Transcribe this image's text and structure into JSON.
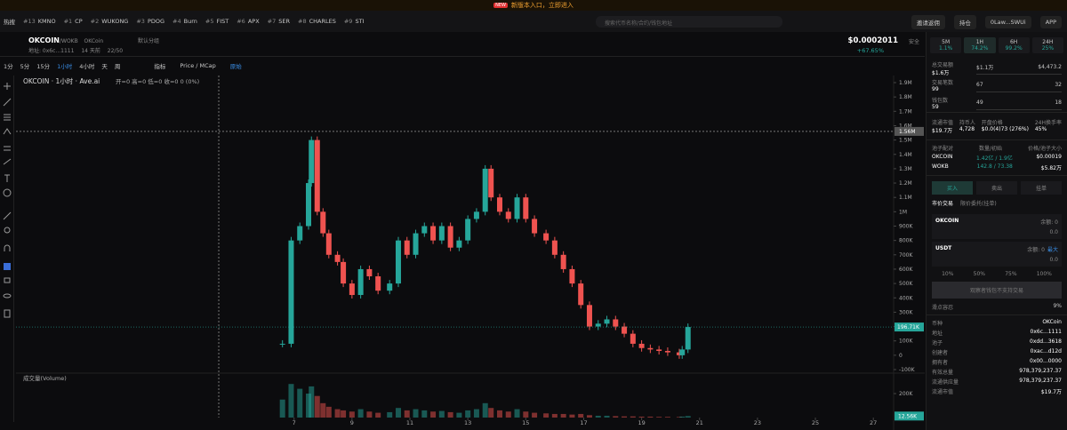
{
  "banner": {
    "badge": "NEW",
    "text": "新版本入口，立即进入"
  },
  "nav": {
    "label": "热搜",
    "tabs": [
      {
        "rank": "#13",
        "name": "KMNO"
      },
      {
        "rank": "#1",
        "name": "CP"
      },
      {
        "rank": "#2",
        "name": "WUKONG"
      },
      {
        "rank": "#3",
        "name": "PDOG"
      },
      {
        "rank": "#4",
        "name": "Burn"
      },
      {
        "rank": "#5",
        "name": "FIST"
      },
      {
        "rank": "#6",
        "name": "APX"
      },
      {
        "rank": "#7",
        "name": "SER"
      },
      {
        "rank": "#8",
        "name": "CHARLES"
      },
      {
        "rank": "#9",
        "name": "STI"
      }
    ],
    "search": "搜索代币名称/合约/钱包地址",
    "actions": [
      "邀请返佣",
      "持仓",
      "0Law...SWUi",
      "APP"
    ]
  },
  "token": {
    "name": "OKCOIN",
    "pair": "/WOKB",
    "chain": "OKCoin",
    "tag": "默认分组",
    "address": "地址: 0x6c...1111",
    "age": "14 天前",
    "holders": "22/50",
    "price": "$0.0002011",
    "change": "+67.65%",
    "safety": "安全"
  },
  "toolbar": {
    "intervals": [
      "1分",
      "5分",
      "15分",
      "1小时",
      "4小时",
      "天",
      "周"
    ],
    "items": [
      "指标",
      "Price / MCap",
      "原始"
    ]
  },
  "chart_data": {
    "type": "candlestick",
    "title": "OKCOIN · 1小时 · Ave.ai",
    "ohlc_label": "开=0 高=0 低=0 收=0 0 (0%)",
    "volume_label": "成交量(Volume)",
    "x": [
      6.6,
      6.9,
      7.2,
      7.5,
      7.6,
      7.8,
      8.0,
      8.2,
      8.5,
      8.7,
      9.0,
      9.3,
      9.6,
      9.9,
      10.3,
      10.6,
      10.9,
      11.2,
      11.5,
      11.8,
      12.1,
      12.4,
      12.7,
      13.0,
      13.3,
      13.6,
      13.8,
      14.1,
      14.4,
      14.7,
      15.0,
      15.3,
      15.7,
      16.0,
      16.3,
      16.6,
      16.9,
      17.2,
      17.5,
      17.8,
      18.1,
      18.4,
      18.7,
      19.0,
      19.3,
      19.6,
      19.9,
      20.3,
      20.4,
      20.6
    ],
    "values": [
      80000,
      800000,
      900000,
      1200000,
      1500000,
      1000000,
      850000,
      700000,
      650000,
      500000,
      420000,
      600000,
      550000,
      450000,
      500000,
      800000,
      700000,
      850000,
      900000,
      800000,
      900000,
      750000,
      800000,
      950000,
      1000000,
      1300000,
      1100000,
      1000000,
      950000,
      1100000,
      950000,
      850000,
      800000,
      700000,
      600000,
      500000,
      350000,
      200000,
      220000,
      250000,
      200000,
      150000,
      80000,
      50000,
      40000,
      30000,
      20000,
      0,
      40000,
      196710
    ],
    "volume": [
      150000,
      280000,
      240000,
      200000,
      260000,
      180000,
      120000,
      90000,
      70000,
      60000,
      50000,
      70000,
      50000,
      40000,
      45000,
      80000,
      60000,
      70000,
      60000,
      50000,
      55000,
      45000,
      40000,
      60000,
      70000,
      120000,
      80000,
      60000,
      50000,
      70000,
      50000,
      40000,
      35000,
      30000,
      30000,
      25000,
      30000,
      20000,
      15000,
      15000,
      12000,
      10000,
      10000,
      8000,
      8000,
      6000,
      6000,
      5000,
      8000,
      12560
    ],
    "up_color": "#26a69a",
    "down_color": "#ef5350",
    "xlim": [
      -2.6,
      27.7
    ],
    "xticks": [
      7,
      9,
      11,
      13,
      15,
      17,
      19,
      21,
      23,
      25,
      27
    ],
    "ylim": [
      -100000,
      1900000
    ],
    "yticks": [
      {
        "value": -100000,
        "label": "-100K"
      },
      0,
      {
        "value": 100000,
        "label": "100K"
      },
      {
        "value": 200000,
        "label": "200K"
      },
      {
        "value": 300000,
        "label": "300K"
      },
      {
        "value": 400000,
        "label": "400K"
      },
      {
        "value": 500000,
        "label": "500K"
      },
      {
        "value": 600000,
        "label": "600K"
      },
      {
        "value": 700000,
        "label": "700K"
      },
      {
        "value": 800000,
        "label": "800K"
      },
      {
        "value": 900000,
        "label": "900K"
      },
      {
        "value": 1000000,
        "label": "1M"
      },
      {
        "value": 1100000,
        "label": "1.1M"
      },
      {
        "value": 1200000,
        "label": "1.2M"
      },
      {
        "value": 1300000,
        "label": "1.3M"
      },
      {
        "value": 1400000,
        "label": "1.4M"
      },
      {
        "value": 1500000,
        "label": "1.5M"
      },
      {
        "value": 1600000,
        "label": "1.6M"
      },
      {
        "value": 1700000,
        "label": "1.7M"
      },
      {
        "value": 1800000,
        "label": "1.8M"
      },
      {
        "value": 1900000,
        "label": "1.9M"
      }
    ],
    "volume_ylim": [
      0,
      300000
    ],
    "volume_yticks": [
      {
        "value": 200000,
        "label": "200K"
      }
    ],
    "last_label": "196.71K",
    "volume_last_label": "12.56K",
    "crosshair": {
      "x": 4.4,
      "value": 1560000,
      "label": "1.56M"
    }
  },
  "stats": {
    "periods": [
      {
        "name": "5M",
        "change": "1.1%"
      },
      {
        "name": "1H",
        "change": "74.2%"
      },
      {
        "name": "6H",
        "change": "99.2%"
      },
      {
        "name": "24H",
        "change": "25%"
      }
    ],
    "rows": [
      {
        "label": "总交易额",
        "total": "$1.6万",
        "buy": "$1.1万",
        "sell": "$4,473.2"
      },
      {
        "label": "交易笔数",
        "total": "99",
        "buy": "67",
        "sell": "32"
      },
      {
        "label": "钱包数",
        "total": "59",
        "buy": "49",
        "sell": "18"
      }
    ],
    "market": [
      {
        "label": "流通市值",
        "value": "$19.7万"
      },
      {
        "label": "持币人",
        "value": "4,728"
      },
      {
        "label": "开盘价格",
        "value": "$0.0(4)73 (276%)"
      },
      {
        "label": "24H换手率",
        "value": "45%"
      }
    ]
  },
  "pool": {
    "headers": [
      "池子配对",
      "数量/初始",
      "价格/池子大小"
    ],
    "rows": [
      {
        "token": "OKCOIN",
        "amount": "1.42亿 / 1.9亿",
        "price": "$0.00019"
      },
      {
        "token": "WOKB",
        "amount": "142.8 / 73.38",
        "price": "$5.82万"
      }
    ]
  },
  "trade": {
    "tabs": [
      "买入",
      "卖出",
      "挂单"
    ],
    "modes": [
      "市价交易",
      "限价委托(挂单)"
    ],
    "from": {
      "token": "OKCOIN",
      "balance": "余额: 0",
      "amount": "0.0"
    },
    "to": {
      "token": "USDT",
      "balance": "余额: 0",
      "max": "最大",
      "amount": "0.0"
    },
    "percents": [
      "10%",
      "50%",
      "75%",
      "100%"
    ],
    "button": "观察者钱包不支持交易",
    "slippage": {
      "label": "滑点容忍",
      "value": "9%"
    }
  },
  "info": [
    {
      "label": "币种",
      "value": "OKCoin"
    },
    {
      "label": "地址",
      "value": "0x6c...1111"
    },
    {
      "label": "池子",
      "value": "0xdd...3618"
    },
    {
      "label": "创建者",
      "value": "0xac...d12d"
    },
    {
      "label": "拥有者",
      "value": "0x00...0000"
    },
    {
      "label": "有效总量",
      "value": "978,379,237.37"
    },
    {
      "label": "流通供应量",
      "value": "978,379,237.37"
    },
    {
      "label": "流通市值",
      "value": "$19.7万"
    }
  ]
}
